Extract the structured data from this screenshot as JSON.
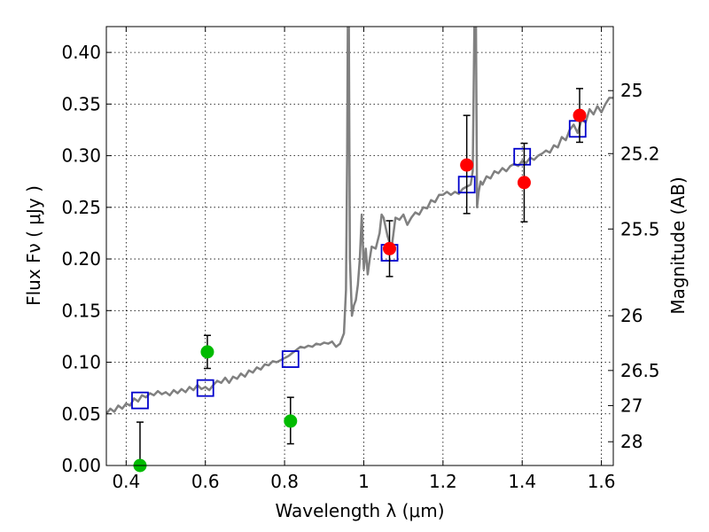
{
  "chart_data": {
    "type": "scatter",
    "xlabel": "Wavelength  λ (μm)",
    "ylabel": "Flux  Fν  ( μJy )",
    "ylabel_right": "Magnitude (AB)",
    "xlim": [
      0.35,
      1.63
    ],
    "ylim": [
      0.0,
      0.425
    ],
    "grid": true,
    "x_ticks": [
      0.4,
      0.6,
      0.8,
      1.0,
      1.2,
      1.4,
      1.6
    ],
    "x_tick_labels": [
      "0.4",
      "0.6",
      "0.8",
      "1",
      "1.2",
      "1.4",
      "1.6"
    ],
    "y_ticks": [
      0.0,
      0.05,
      0.1,
      0.15,
      0.2,
      0.25,
      0.3,
      0.35,
      0.4
    ],
    "y_tick_labels": [
      "0.00",
      "0.05",
      "0.10",
      "0.15",
      "0.20",
      "0.25",
      "0.30",
      "0.35",
      "0.40"
    ],
    "right_ticks": [
      {
        "label": "25",
        "flux": 0.363
      },
      {
        "label": "25.2",
        "flux": 0.302
      },
      {
        "label": "25.5",
        "flux": 0.229
      },
      {
        "label": "26",
        "flux": 0.145
      },
      {
        "label": "26.5",
        "flux": 0.092
      },
      {
        "label": "27",
        "flux": 0.058
      },
      {
        "label": "28",
        "flux": 0.023
      }
    ],
    "colors": {
      "model": "#808080",
      "green": "#00bb00",
      "red": "#ff0000",
      "boxes": "#0000cc",
      "errorbar": "#000000"
    },
    "model_spectrum": {
      "x": [
        0.35,
        0.36,
        0.37,
        0.38,
        0.39,
        0.4,
        0.41,
        0.42,
        0.43,
        0.44,
        0.45,
        0.46,
        0.47,
        0.48,
        0.49,
        0.5,
        0.51,
        0.52,
        0.53,
        0.54,
        0.55,
        0.56,
        0.57,
        0.58,
        0.59,
        0.6,
        0.61,
        0.62,
        0.63,
        0.64,
        0.65,
        0.66,
        0.67,
        0.68,
        0.69,
        0.7,
        0.71,
        0.72,
        0.73,
        0.74,
        0.75,
        0.76,
        0.77,
        0.78,
        0.79,
        0.8,
        0.81,
        0.82,
        0.83,
        0.84,
        0.85,
        0.86,
        0.87,
        0.88,
        0.89,
        0.9,
        0.91,
        0.92,
        0.93,
        0.94,
        0.95,
        0.955,
        0.958,
        0.96,
        0.962,
        0.965,
        0.97,
        0.975,
        0.98,
        0.985,
        0.99,
        0.995,
        1.0,
        1.005,
        1.01,
        1.015,
        1.02,
        1.03,
        1.04,
        1.045,
        1.05,
        1.06,
        1.07,
        1.08,
        1.09,
        1.1,
        1.11,
        1.12,
        1.13,
        1.14,
        1.15,
        1.16,
        1.17,
        1.18,
        1.19,
        1.2,
        1.21,
        1.22,
        1.23,
        1.24,
        1.25,
        1.26,
        1.27,
        1.275,
        1.28,
        1.283,
        1.286,
        1.29,
        1.295,
        1.3,
        1.31,
        1.32,
        1.33,
        1.34,
        1.35,
        1.36,
        1.37,
        1.38,
        1.39,
        1.4,
        1.41,
        1.42,
        1.43,
        1.44,
        1.45,
        1.46,
        1.47,
        1.48,
        1.49,
        1.5,
        1.51,
        1.52,
        1.53,
        1.54,
        1.55,
        1.56,
        1.57,
        1.58,
        1.59,
        1.6,
        1.61,
        1.62,
        1.63
      ],
      "y": [
        0.05,
        0.055,
        0.052,
        0.058,
        0.055,
        0.06,
        0.058,
        0.065,
        0.062,
        0.068,
        0.066,
        0.07,
        0.068,
        0.072,
        0.069,
        0.071,
        0.068,
        0.073,
        0.07,
        0.074,
        0.071,
        0.076,
        0.073,
        0.078,
        0.074,
        0.076,
        0.073,
        0.078,
        0.082,
        0.08,
        0.085,
        0.08,
        0.086,
        0.084,
        0.089,
        0.086,
        0.092,
        0.09,
        0.095,
        0.093,
        0.098,
        0.097,
        0.101,
        0.1,
        0.102,
        0.104,
        0.106,
        0.109,
        0.112,
        0.115,
        0.114,
        0.116,
        0.115,
        0.118,
        0.117,
        0.119,
        0.118,
        0.12,
        0.115,
        0.118,
        0.128,
        0.17,
        0.3,
        0.45,
        0.45,
        0.2,
        0.145,
        0.155,
        0.16,
        0.175,
        0.2,
        0.243,
        0.19,
        0.21,
        0.185,
        0.2,
        0.212,
        0.21,
        0.225,
        0.243,
        0.24,
        0.222,
        0.21,
        0.24,
        0.238,
        0.243,
        0.233,
        0.24,
        0.245,
        0.243,
        0.25,
        0.249,
        0.257,
        0.255,
        0.262,
        0.262,
        0.265,
        0.262,
        0.265,
        0.263,
        0.268,
        0.27,
        0.272,
        0.285,
        0.45,
        0.45,
        0.25,
        0.265,
        0.275,
        0.272,
        0.28,
        0.278,
        0.285,
        0.283,
        0.288,
        0.285,
        0.29,
        0.292,
        0.29,
        0.295,
        0.293,
        0.298,
        0.296,
        0.3,
        0.302,
        0.305,
        0.303,
        0.31,
        0.308,
        0.318,
        0.315,
        0.325,
        0.33,
        0.322,
        0.335,
        0.332,
        0.345,
        0.34,
        0.348,
        0.342,
        0.35,
        0.356,
        0.356
      ]
    },
    "green_points": [
      {
        "x": 0.435,
        "y": 0.0,
        "err_lo": 0.0,
        "err_hi": 0.042
      },
      {
        "x": 0.605,
        "y": 0.11,
        "err_lo": 0.016,
        "err_hi": 0.016
      },
      {
        "x": 0.815,
        "y": 0.043,
        "err_lo": 0.022,
        "err_hi": 0.023
      }
    ],
    "red_points": [
      {
        "x": 1.065,
        "y": 0.21,
        "err_lo": 0.027,
        "err_hi": 0.027
      },
      {
        "x": 1.26,
        "y": 0.291,
        "err_lo": 0.047,
        "err_hi": 0.048
      },
      {
        "x": 1.405,
        "y": 0.274,
        "err_lo": 0.038,
        "err_hi": 0.038
      },
      {
        "x": 1.545,
        "y": 0.339,
        "err_lo": 0.026,
        "err_hi": 0.026
      }
    ],
    "model_boxes": [
      {
        "x": 0.435,
        "y": 0.063
      },
      {
        "x": 0.6,
        "y": 0.075
      },
      {
        "x": 0.815,
        "y": 0.103
      },
      {
        "x": 1.065,
        "y": 0.206
      },
      {
        "x": 1.26,
        "y": 0.272
      },
      {
        "x": 1.4,
        "y": 0.299
      },
      {
        "x": 1.54,
        "y": 0.326
      }
    ]
  }
}
